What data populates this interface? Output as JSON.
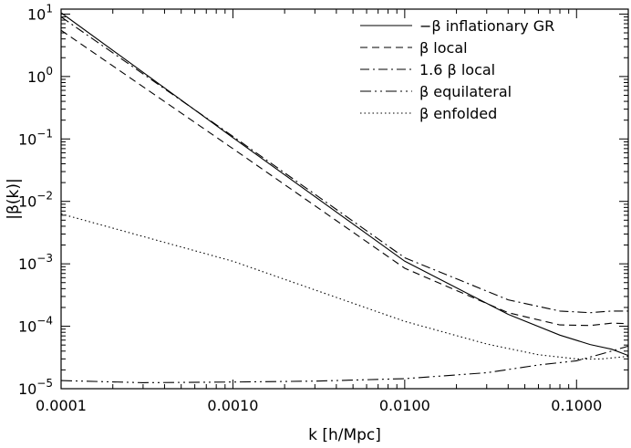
{
  "chart_data": {
    "type": "line",
    "xlabel": "k [h/Mpc]",
    "ylabel": "|β(k)|",
    "x_scale": "log",
    "y_scale": "log",
    "xlim": [
      0.0001,
      0.2
    ],
    "ylim": [
      1e-05,
      12
    ],
    "grid": false,
    "legend_position": "top-right",
    "x_ticks": [
      {
        "value": 0.0001,
        "label": "0.0001"
      },
      {
        "value": 0.001,
        "label": "0.0010"
      },
      {
        "value": 0.01,
        "label": "0.0100"
      },
      {
        "value": 0.1,
        "label": "0.1000"
      }
    ],
    "y_ticks": [
      {
        "value": 10,
        "exp": "1"
      },
      {
        "value": 1,
        "exp": "0"
      },
      {
        "value": 0.1,
        "exp": "−1"
      },
      {
        "value": 0.01,
        "exp": "−2"
      },
      {
        "value": 0.001,
        "exp": "−3"
      },
      {
        "value": 0.0001,
        "exp": "−4"
      },
      {
        "value": 1e-05,
        "exp": "−5"
      }
    ],
    "series": [
      {
        "name": "−β inflationary GR",
        "style": "solid",
        "x": [
          0.0001,
          0.001,
          0.01,
          0.04,
          0.08,
          0.12,
          0.16,
          0.2
        ],
        "y": [
          10.5,
          0.105,
          0.0011,
          0.000155,
          7.2e-05,
          5.1e-05,
          4.3e-05,
          3.4e-05
        ]
      },
      {
        "name": "β local",
        "style": "dashed",
        "x": [
          0.0001,
          0.001,
          0.01,
          0.04,
          0.08,
          0.12,
          0.16,
          0.2
        ],
        "y": [
          5.5,
          0.07,
          0.00085,
          0.000165,
          0.000105,
          0.000103,
          0.000112,
          0.00011
        ]
      },
      {
        "name": "β local",
        "prefix": "1.6",
        "style": "dashdot",
        "x": [
          0.0001,
          0.001,
          0.01,
          0.04,
          0.08,
          0.12,
          0.16,
          0.2
        ],
        "y": [
          9.0,
          0.11,
          0.00125,
          0.000265,
          0.000175,
          0.000165,
          0.000175,
          0.000175
        ]
      },
      {
        "name": "β equilateral",
        "style": "dashdotdot",
        "x": [
          0.0001,
          0.0003,
          0.001,
          0.003,
          0.01,
          0.03,
          0.06,
          0.1,
          0.14,
          0.2
        ],
        "y": [
          1.35e-05,
          1.25e-05,
          1.28e-05,
          1.32e-05,
          1.45e-05,
          1.8e-05,
          2.4e-05,
          2.8e-05,
          3.6e-05,
          4.8e-05
        ]
      },
      {
        "name": "β enfolded",
        "style": "dotted",
        "x": [
          0.0001,
          0.001,
          0.01,
          0.03,
          0.06,
          0.1,
          0.14,
          0.2
        ],
        "y": [
          0.0063,
          0.0011,
          0.00012,
          5.2e-05,
          3.5e-05,
          3e-05,
          3e-05,
          3.3e-05
        ]
      }
    ]
  }
}
